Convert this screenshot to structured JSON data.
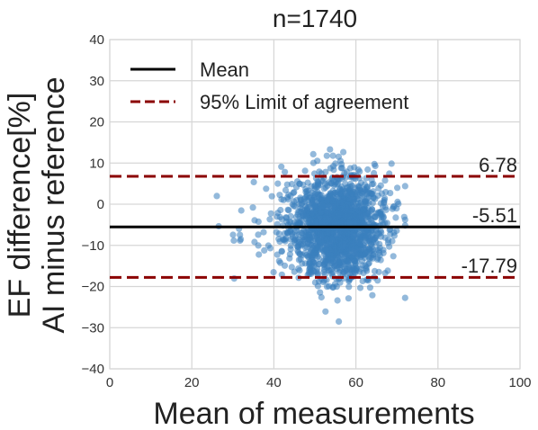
{
  "chart_data": {
    "type": "scatter",
    "title": "n=1740",
    "xlabel": "Mean of measurements",
    "ylabel_lines": [
      "EF difference[%]",
      "AI minus reference"
    ],
    "xlim": [
      0,
      100
    ],
    "ylim": [
      -40,
      40
    ],
    "x_ticks": [
      0,
      20,
      40,
      60,
      80,
      100
    ],
    "y_ticks": [
      -40,
      -30,
      -20,
      -10,
      0,
      10,
      20,
      30,
      40
    ],
    "x_tick_labels": [
      "0",
      "20",
      "40",
      "60",
      "80",
      "100"
    ],
    "y_tick_labels": [
      "−40",
      "−30",
      "−20",
      "−10",
      "0",
      "10",
      "20",
      "30",
      "40"
    ],
    "grid": true,
    "legend_position": "top-left",
    "legend": [
      {
        "label": "Mean",
        "style": "solid",
        "color": "#000000"
      },
      {
        "label": "95% Limit of agreement",
        "style": "dashed",
        "color": "#8b0000"
      }
    ],
    "mean": -5.51,
    "upper_loa": 6.78,
    "lower_loa": -17.79,
    "mean_label": "-5.51",
    "upper_label": "6.78",
    "lower_label": "-17.79",
    "points": {
      "count": 1740,
      "color": "#3a7fbd",
      "x_mean": 56,
      "x_sd": 5.5,
      "y_mean": -5.51,
      "y_sd": 6.2
    }
  }
}
